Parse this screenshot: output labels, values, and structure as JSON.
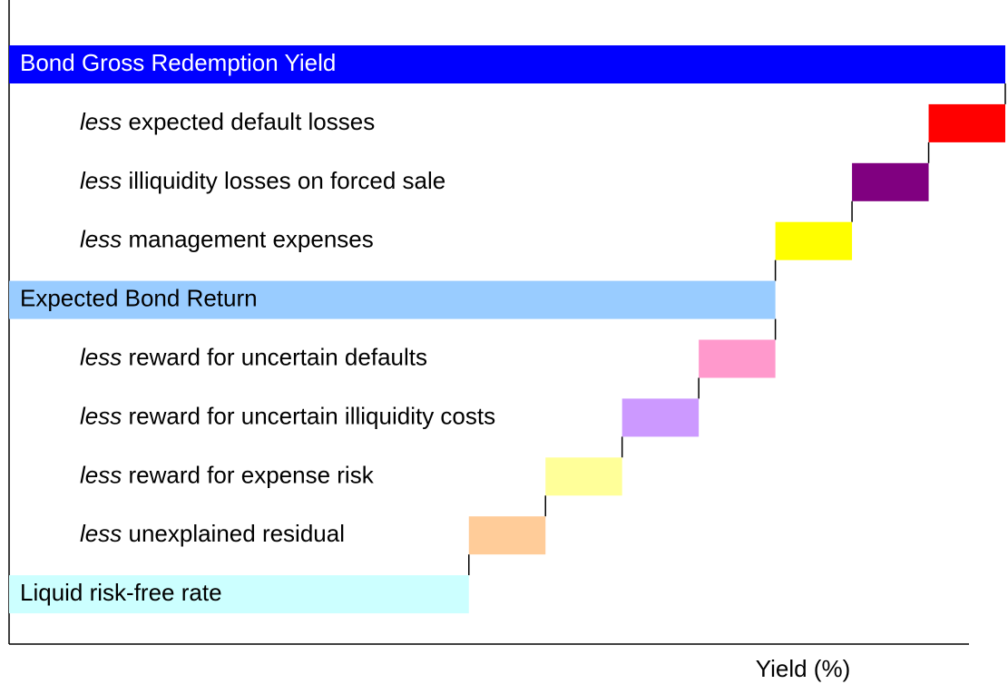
{
  "chart_data": {
    "type": "waterfall",
    "x_label": "Yield (%)",
    "xlim": [
      0,
      13
    ],
    "items": [
      {
        "label": "Bond Gross Redemption Yield",
        "value": 13,
        "kind": "total",
        "color": "#0000ff",
        "text_color": "#ffffff"
      },
      {
        "prefix": "less",
        "label": "expected default losses",
        "value": -1,
        "kind": "decrease",
        "color": "#ff0000"
      },
      {
        "prefix": "less",
        "label": "illiquidity losses on forced sale",
        "value": -1,
        "kind": "decrease",
        "color": "#800080"
      },
      {
        "prefix": "less",
        "label": "management expenses",
        "value": -1,
        "kind": "decrease",
        "color": "#ffff00"
      },
      {
        "label": "Expected Bond Return",
        "value": 10,
        "kind": "total",
        "color": "#99ccff",
        "text_color": "#000000"
      },
      {
        "prefix": "less",
        "label": "reward for uncertain defaults",
        "value": -1,
        "kind": "decrease",
        "color": "#ff99cc"
      },
      {
        "prefix": "less",
        "label": "reward for uncertain illiquidity costs",
        "value": -1,
        "kind": "decrease",
        "color": "#cc99ff"
      },
      {
        "prefix": "less",
        "label": "reward for expense risk",
        "value": -1,
        "kind": "decrease",
        "color": "#ffff99"
      },
      {
        "prefix": "less",
        "label": "unexplained residual",
        "value": -1,
        "kind": "decrease",
        "color": "#ffcc99"
      },
      {
        "label": "Liquid risk-free rate",
        "value": 6,
        "kind": "total",
        "color": "#ccffff",
        "text_color": "#000000"
      }
    ]
  }
}
